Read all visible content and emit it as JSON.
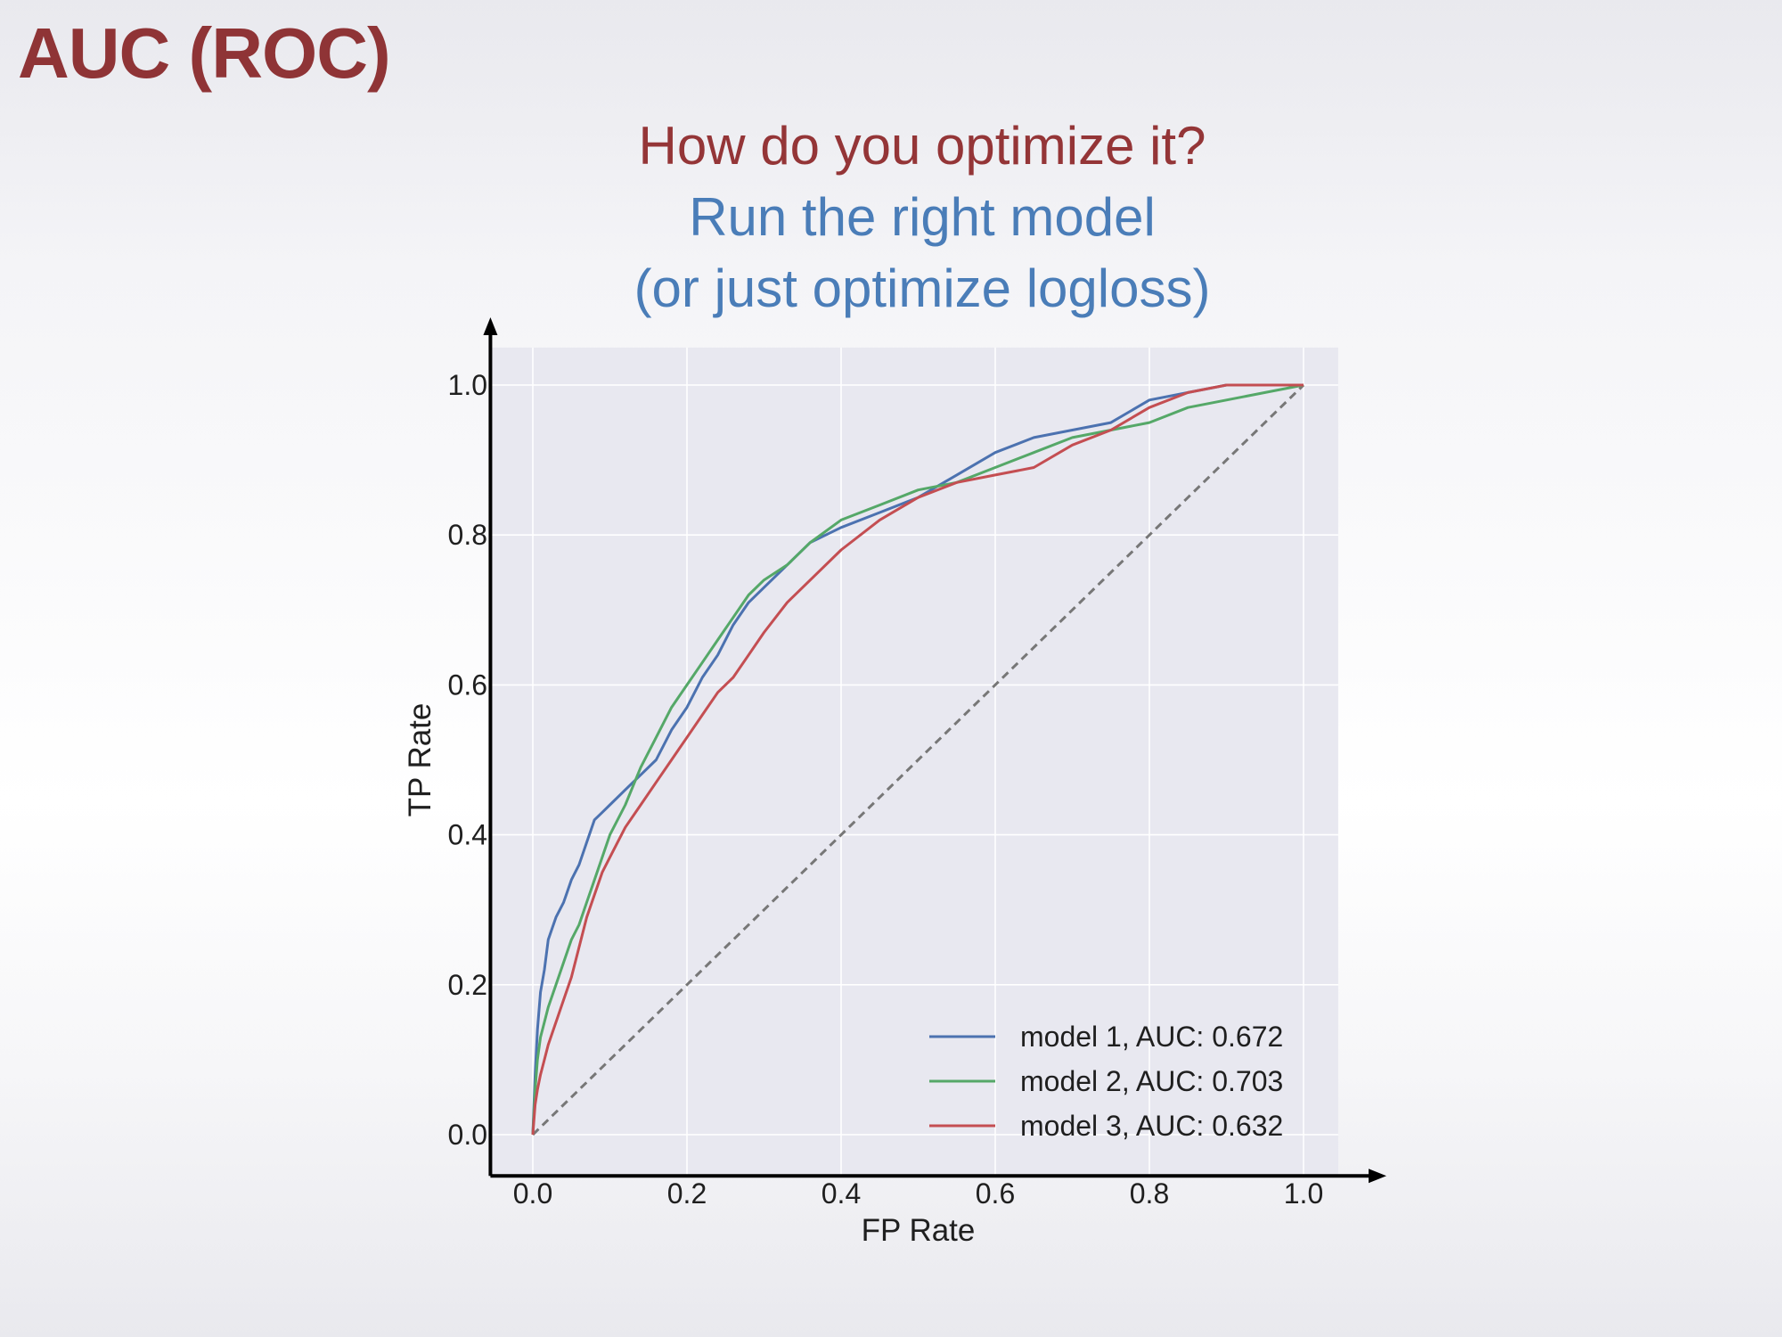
{
  "slide": {
    "title": "AUC (ROC)",
    "question": "How do you optimize it?",
    "answer_line1": "Run the right model",
    "answer_line2": "(or just optimize logloss)"
  },
  "colors": {
    "title": "#8f3436",
    "question": "#943537",
    "answer": "#4a7db8",
    "plot_bg": "#e8e8f0",
    "grid": "#ffffff",
    "model1": "#4c72b0",
    "model2": "#55a868",
    "model3": "#c44e52",
    "diagonal": "#777777"
  },
  "chart_data": {
    "type": "line",
    "xlabel": "FP Rate",
    "ylabel": "TP Rate",
    "xlim": [
      -0.055,
      1.045
    ],
    "ylim": [
      -0.055,
      1.05
    ],
    "xticks": [
      "0.0",
      "0.2",
      "0.4",
      "0.6",
      "0.8",
      "1.0"
    ],
    "yticks": [
      "0.0",
      "0.2",
      "0.4",
      "0.6",
      "0.8",
      "1.0"
    ],
    "grid": true,
    "legend_position": "lower-right",
    "series": [
      {
        "name": "model 1, AUC: 0.672",
        "x": [
          0.0,
          0.003,
          0.006,
          0.01,
          0.015,
          0.02,
          0.03,
          0.04,
          0.05,
          0.06,
          0.07,
          0.08,
          0.09,
          0.1,
          0.12,
          0.14,
          0.16,
          0.18,
          0.2,
          0.22,
          0.24,
          0.26,
          0.28,
          0.3,
          0.33,
          0.36,
          0.4,
          0.45,
          0.5,
          0.55,
          0.6,
          0.65,
          0.7,
          0.75,
          0.8,
          0.85,
          0.9,
          0.95,
          1.0
        ],
        "y": [
          0.0,
          0.08,
          0.14,
          0.19,
          0.22,
          0.26,
          0.29,
          0.31,
          0.34,
          0.36,
          0.39,
          0.42,
          0.43,
          0.44,
          0.46,
          0.48,
          0.5,
          0.54,
          0.57,
          0.61,
          0.64,
          0.68,
          0.71,
          0.73,
          0.76,
          0.79,
          0.81,
          0.83,
          0.85,
          0.88,
          0.91,
          0.93,
          0.94,
          0.95,
          0.98,
          0.99,
          1.0,
          1.0,
          1.0
        ]
      },
      {
        "name": "model 2, AUC: 0.703",
        "x": [
          0.0,
          0.003,
          0.006,
          0.01,
          0.015,
          0.02,
          0.03,
          0.04,
          0.05,
          0.06,
          0.07,
          0.08,
          0.09,
          0.1,
          0.12,
          0.14,
          0.16,
          0.18,
          0.2,
          0.22,
          0.24,
          0.26,
          0.28,
          0.3,
          0.33,
          0.36,
          0.4,
          0.45,
          0.5,
          0.55,
          0.6,
          0.65,
          0.7,
          0.75,
          0.8,
          0.85,
          0.9,
          0.95,
          1.0
        ],
        "y": [
          0.0,
          0.06,
          0.1,
          0.13,
          0.15,
          0.17,
          0.2,
          0.23,
          0.26,
          0.28,
          0.31,
          0.34,
          0.37,
          0.4,
          0.44,
          0.49,
          0.53,
          0.57,
          0.6,
          0.63,
          0.66,
          0.69,
          0.72,
          0.74,
          0.76,
          0.79,
          0.82,
          0.84,
          0.86,
          0.87,
          0.89,
          0.91,
          0.93,
          0.94,
          0.95,
          0.97,
          0.98,
          0.99,
          1.0
        ]
      },
      {
        "name": "model 3, AUC: 0.632",
        "x": [
          0.0,
          0.003,
          0.006,
          0.01,
          0.015,
          0.02,
          0.03,
          0.04,
          0.05,
          0.06,
          0.07,
          0.08,
          0.09,
          0.1,
          0.12,
          0.14,
          0.16,
          0.18,
          0.2,
          0.22,
          0.24,
          0.26,
          0.28,
          0.3,
          0.33,
          0.36,
          0.4,
          0.45,
          0.5,
          0.55,
          0.6,
          0.65,
          0.7,
          0.75,
          0.8,
          0.85,
          0.9,
          0.95,
          1.0
        ],
        "y": [
          0.0,
          0.04,
          0.06,
          0.08,
          0.1,
          0.12,
          0.15,
          0.18,
          0.21,
          0.25,
          0.29,
          0.32,
          0.35,
          0.37,
          0.41,
          0.44,
          0.47,
          0.5,
          0.53,
          0.56,
          0.59,
          0.61,
          0.64,
          0.67,
          0.71,
          0.74,
          0.78,
          0.82,
          0.85,
          0.87,
          0.88,
          0.89,
          0.92,
          0.94,
          0.97,
          0.99,
          1.0,
          1.0,
          1.0
        ]
      }
    ],
    "reference_line": {
      "x": [
        0,
        1
      ],
      "y": [
        0,
        1
      ],
      "style": "dashed"
    }
  }
}
